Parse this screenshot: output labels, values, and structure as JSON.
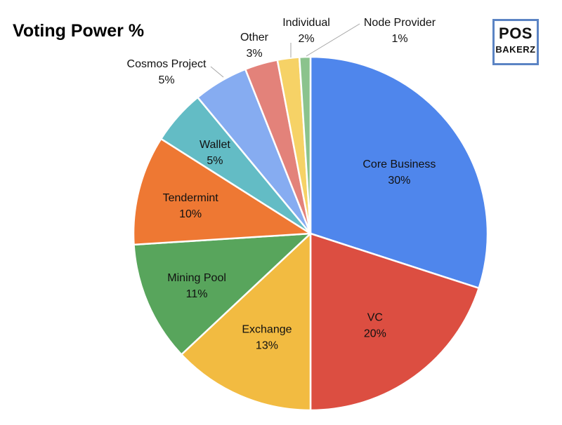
{
  "title": "Voting Power %",
  "logo": {
    "line1": "POS",
    "line2": "BAKERZ"
  },
  "chart_data": {
    "type": "pie",
    "title": "Voting Power %",
    "slices": [
      {
        "label": "Core Business",
        "value": 30,
        "value_label": "30%",
        "color": "#4f86ec"
      },
      {
        "label": "VC",
        "value": 20,
        "value_label": "20%",
        "color": "#dc4e41"
      },
      {
        "label": "Exchange",
        "value": 13,
        "value_label": "13%",
        "color": "#f2bb41"
      },
      {
        "label": "Mining Pool",
        "value": 11,
        "value_label": "11%",
        "color": "#58a55c"
      },
      {
        "label": "Tendermint",
        "value": 10,
        "value_label": "10%",
        "color": "#ee7833"
      },
      {
        "label": "Wallet",
        "value": 5,
        "value_label": "5%",
        "color": "#63bcc5"
      },
      {
        "label": "Cosmos Project",
        "value": 5,
        "value_label": "5%",
        "color": "#86acf1"
      },
      {
        "label": "Other",
        "value": 3,
        "value_label": "3%",
        "color": "#e3827a"
      },
      {
        "label": "Individual",
        "value": 2,
        "value_label": "2%",
        "color": "#f6d266"
      },
      {
        "label": "Node Provider",
        "value": 1,
        "value_label": "1%",
        "color": "#8bc38d"
      }
    ],
    "start_angle": "12 o'clock",
    "direction": "clockwise",
    "legend": "none"
  }
}
